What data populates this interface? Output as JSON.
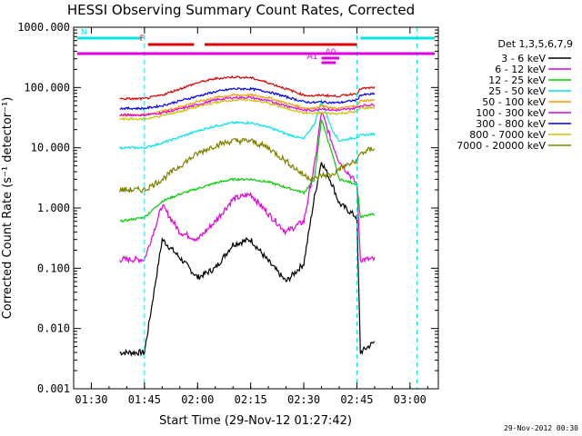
{
  "chart_data": {
    "type": "line",
    "title": "HESSI Observing Summary Count Rates, Corrected",
    "xlabel": "Start Time (29-Nov-12 01:27:42)",
    "ylabel": "Corrected Count Rate (s⁻¹ detector⁻¹)",
    "y_scale": "log",
    "ylim": [
      0.001,
      1000
    ],
    "xlim": [
      "01:25",
      "03:08"
    ],
    "x_ticks": [
      "01:30",
      "01:45",
      "02:00",
      "02:15",
      "02:30",
      "02:45",
      "03:00"
    ],
    "y_ticks": [
      "0.001",
      "0.010",
      "0.100",
      "1.000",
      "10.000",
      "100.000",
      "1000.000"
    ],
    "legend_title": "Det 1,3,5,6,7,9",
    "legend_position": "right",
    "timestamp": "29-Nov-2012 00:30",
    "flags": [
      {
        "label": "N",
        "color": "#00e5e5",
        "segments": [
          [
            "01:26",
            "01:44"
          ],
          [
            "02:46",
            "03:07"
          ]
        ]
      },
      {
        "label": "F",
        "color": "#dd0000",
        "segments": [
          [
            "01:46",
            "01:59"
          ],
          [
            "02:02",
            "02:45"
          ]
        ]
      },
      {
        "label": "A0",
        "color": "#e000e0",
        "segments": [
          [
            "02:35",
            "02:40"
          ]
        ]
      },
      {
        "label": "A1",
        "color": "#e000e0",
        "segments": [
          [
            "02:35",
            "02:39"
          ]
        ]
      },
      {
        "label": "",
        "color": "#e000e0",
        "segments": [
          [
            "01:26",
            "03:07"
          ]
        ]
      }
    ],
    "markers": [
      {
        "name": "night-start",
        "time": "01:45",
        "color": "#00e5e5"
      },
      {
        "name": "night-end",
        "time": "02:45",
        "color": "#00e5e5"
      },
      {
        "name": "night-start-2",
        "time": "03:02",
        "color": "#00e5e5"
      }
    ],
    "x": [
      "01:38",
      "01:45",
      "01:50",
      "01:55",
      "02:00",
      "02:05",
      "02:10",
      "02:15",
      "02:20",
      "02:25",
      "02:30",
      "02:33",
      "02:35",
      "02:38",
      "02:40",
      "02:45",
      "02:46",
      "02:50"
    ],
    "series": [
      {
        "name": "3 - 6 keV",
        "color": "#000000",
        "values": [
          0.004,
          0.004,
          0.3,
          0.15,
          0.07,
          0.1,
          0.25,
          0.3,
          0.13,
          0.06,
          0.12,
          1.5,
          6,
          2.5,
          1.2,
          0.7,
          0.004,
          0.006
        ]
      },
      {
        "name": "6 - 12 keV",
        "color": "#e000e0",
        "values": [
          0.14,
          0.14,
          1.1,
          0.4,
          0.3,
          0.6,
          1.4,
          1.7,
          0.8,
          0.4,
          0.6,
          5,
          40,
          12,
          6,
          2.5,
          0.14,
          0.14
        ]
      },
      {
        "name": "12 - 25 keV",
        "color": "#00d000",
        "values": [
          0.6,
          0.7,
          1.3,
          1.7,
          2.1,
          2.6,
          3,
          3,
          2.7,
          2.2,
          1.8,
          3,
          30,
          8,
          3,
          2.5,
          0.7,
          0.8
        ]
      },
      {
        "name": "25 - 50 keV",
        "color": "#00e5e5",
        "values": [
          10,
          10,
          12,
          15,
          19,
          23,
          26,
          26,
          22,
          17,
          14,
          25,
          60,
          20,
          13,
          15,
          16,
          17
        ]
      },
      {
        "name": "50 - 100 keV",
        "color": "#ff9900",
        "values": [
          35,
          35,
          40,
          48,
          58,
          68,
          75,
          75,
          68,
          55,
          46,
          45,
          50,
          45,
          45,
          50,
          60,
          62
        ]
      },
      {
        "name": "100 - 300 keV",
        "color": "#e000e0",
        "values": [
          35,
          35,
          38,
          44,
          52,
          62,
          68,
          68,
          60,
          50,
          42,
          42,
          45,
          42,
          42,
          46,
          50,
          52
        ]
      },
      {
        "name": "300 - 800 keV",
        "color": "#0000ee",
        "values": [
          45,
          45,
          50,
          60,
          72,
          85,
          95,
          95,
          85,
          70,
          58,
          56,
          58,
          56,
          56,
          62,
          75,
          78
        ]
      },
      {
        "name": "800 - 7000 keV",
        "color": "#d0c000",
        "values": [
          30,
          30,
          34,
          40,
          48,
          56,
          62,
          62,
          55,
          45,
          38,
          37,
          38,
          37,
          37,
          40,
          45,
          47
        ]
      },
      {
        "name": "7000 - 20000 keV",
        "color": "#808000",
        "values": [
          2,
          2,
          3,
          5,
          8,
          11,
          13,
          13,
          10,
          6,
          3.5,
          3,
          3.5,
          3.5,
          4.5,
          6,
          8,
          10
        ]
      },
      {
        "name": "",
        "color": "#dd0000",
        "values": [
          65,
          65,
          75,
          95,
          120,
          140,
          150,
          145,
          120,
          95,
          75,
          72,
          75,
          72,
          72,
          80,
          95,
          100
        ]
      }
    ]
  }
}
